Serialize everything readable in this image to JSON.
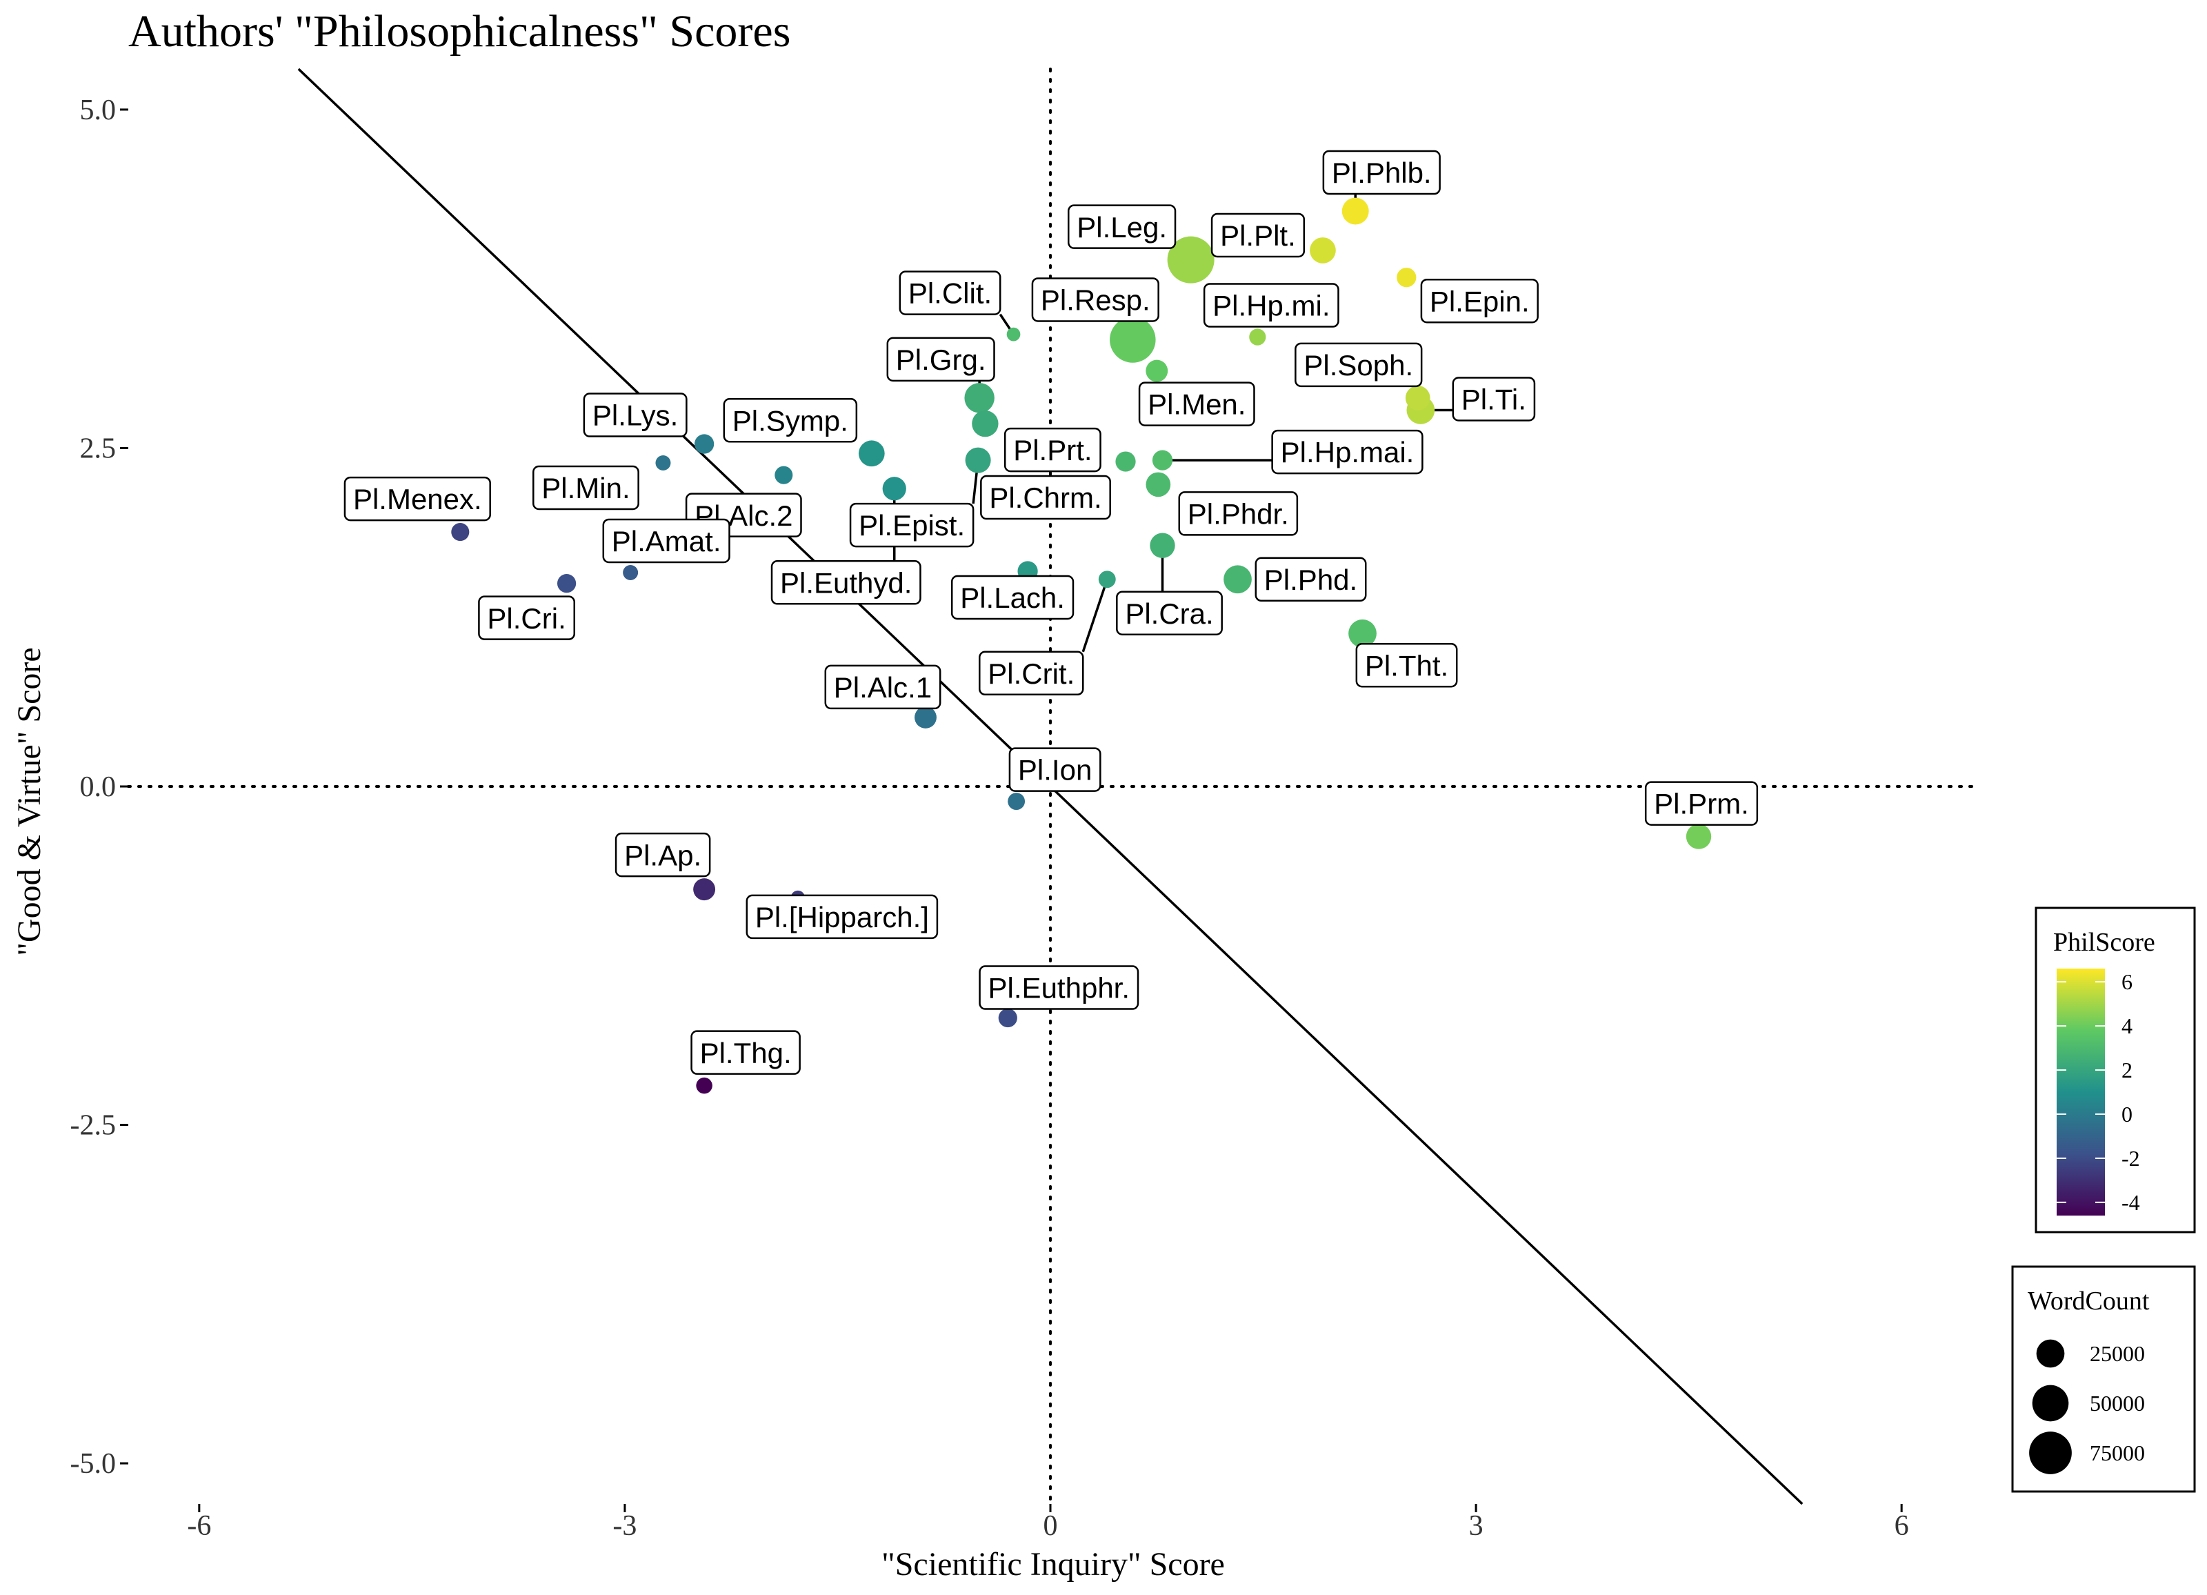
{
  "chart_data": {
    "type": "scatter",
    "title": "Authors' \"Philosophicalness\" Scores",
    "xlabel": "\"Scientific Inquiry\" Score",
    "ylabel": "\"Good & Virtue\" Score",
    "xlim": [
      -6.5,
      6.5
    ],
    "ylim": [
      -5.3,
      5.3
    ],
    "x_ticks": [
      -6,
      -3,
      0,
      3,
      6
    ],
    "x_tick_labels": [
      "-6",
      "-3",
      "0",
      "3",
      "6"
    ],
    "y_ticks": [
      5.0,
      2.5,
      0.0,
      -2.5,
      -5.0
    ],
    "y_tick_labels": [
      "5.0",
      "2.5",
      "0.0",
      "-2.5",
      "-5.0"
    ],
    "grid": false,
    "reference_lines": {
      "vertical_dotted_x": 0,
      "horizontal_dotted_y": 0,
      "diagonal": {
        "slope": -1,
        "intercept": 0
      }
    },
    "color_legend": {
      "title": "PhilScore",
      "placement": "right",
      "range": [
        -4.6,
        6.6
      ],
      "ticks": [
        6,
        4,
        2,
        0,
        -2,
        -4
      ],
      "tick_labels": [
        "6",
        "4",
        "2",
        "0",
        "-2",
        "-4"
      ],
      "colors": [
        "#440154",
        "#3b528b",
        "#21918c",
        "#5ec962",
        "#fde725"
      ]
    },
    "size_legend": {
      "title": "WordCount",
      "placement": "right",
      "values": [
        25000,
        50000,
        75000
      ],
      "labels": [
        "25000",
        "50000",
        "75000"
      ]
    },
    "points": [
      {
        "label": "Pl.Phlb.",
        "x": 2.15,
        "y": 4.25,
        "phil": 6.4,
        "words": 22000
      },
      {
        "label": "Pl.Plt.",
        "x": 1.92,
        "y": 3.96,
        "phil": 5.9,
        "words": 20000
      },
      {
        "label": "Pl.Leg.",
        "x": 0.99,
        "y": 3.89,
        "phil": 4.9,
        "words": 95000
      },
      {
        "label": "Pl.Epin.",
        "x": 2.51,
        "y": 3.76,
        "phil": 6.3,
        "words": 8000
      },
      {
        "label": "Pl.Hp.mi.",
        "x": 1.46,
        "y": 3.32,
        "phil": 4.8,
        "words": 4500
      },
      {
        "label": "Pl.Clit.",
        "x": -0.26,
        "y": 3.34,
        "phil": 3.1,
        "words": 1800
      },
      {
        "label": "Pl.Resp.",
        "x": 0.58,
        "y": 3.3,
        "phil": 3.9,
        "words": 90000
      },
      {
        "label": "Pl.Men.",
        "x": 0.75,
        "y": 3.07,
        "phil": 3.8,
        "words": 12000
      },
      {
        "label": "Pl.Soph.",
        "x": 2.59,
        "y": 2.87,
        "phil": 5.5,
        "words": 17000
      },
      {
        "label": "Pl.Ti.",
        "x": 2.61,
        "y": 2.78,
        "phil": 5.4,
        "words": 25000
      },
      {
        "label": "Pl.Grg.",
        "x": -0.5,
        "y": 2.87,
        "phil": 2.4,
        "words": 30000
      },
      {
        "label": "Pl.Prt.",
        "x": -0.46,
        "y": 2.68,
        "phil": 2.2,
        "words": 21000
      },
      {
        "label": "Pl.Lys.",
        "x": -2.44,
        "y": 2.53,
        "phil": 0.1,
        "words": 8000
      },
      {
        "label": "Pl.Symp.",
        "x": -1.26,
        "y": 2.46,
        "phil": 1.2,
        "words": 20000
      },
      {
        "label": "Pl.Epist.",
        "x": -0.51,
        "y": 2.41,
        "phil": 1.9,
        "words": 19000
      },
      {
        "label": "Pl.Min.",
        "x": -2.73,
        "y": 2.39,
        "phil": -0.3,
        "words": 3000
      },
      {
        "label": "Pl.Hp.mai.",
        "x": 0.79,
        "y": 2.41,
        "phil": 3.2,
        "words": 9000
      },
      {
        "label": "Pl.Chrm.",
        "x": 0.53,
        "y": 2.4,
        "phil": 2.9,
        "words": 9000
      },
      {
        "label": "Pl.Alc.2",
        "x": -1.88,
        "y": 2.3,
        "phil": 0.4,
        "words": 6000
      },
      {
        "label": "Pl.Euthyd.",
        "x": -1.1,
        "y": 2.2,
        "phil": 1.1,
        "words": 15000
      },
      {
        "label": "Pl.Phdr.",
        "x": 0.76,
        "y": 2.23,
        "phil": 3.0,
        "words": 17000
      },
      {
        "label": "Pl.Menex.",
        "x": -4.16,
        "y": 1.88,
        "phil": -2.3,
        "words": 6000
      },
      {
        "label": "Pl.Cra.",
        "x": 0.79,
        "y": 1.78,
        "phil": 2.6,
        "words": 18000
      },
      {
        "label": "Pl.Amat.",
        "x": -2.96,
        "y": 1.58,
        "phil": -1.4,
        "words": 3000
      },
      {
        "label": "Pl.Lach.",
        "x": -0.16,
        "y": 1.59,
        "phil": 1.4,
        "words": 9000
      },
      {
        "label": "Pl.Phd.",
        "x": 1.32,
        "y": 1.53,
        "phil": 2.8,
        "words": 25000
      },
      {
        "label": "Pl.Crit.",
        "x": 0.4,
        "y": 1.53,
        "phil": 1.9,
        "words": 5000
      },
      {
        "label": "Pl.Cri.",
        "x": -3.41,
        "y": 1.5,
        "phil": -1.9,
        "words": 7000
      },
      {
        "label": "Pl.Tht.",
        "x": 2.2,
        "y": 1.13,
        "phil": 3.3,
        "words": 25000
      },
      {
        "label": "Pl.Alc.1",
        "x": -0.88,
        "y": 0.51,
        "phil": -0.4,
        "words": 12000
      },
      {
        "label": "Pl.Ion",
        "x": -0.24,
        "y": -0.11,
        "phil": -0.4,
        "words": 5000
      },
      {
        "label": "Pl.Prm.",
        "x": 4.57,
        "y": -0.37,
        "phil": 4.2,
        "words": 18000
      },
      {
        "label": "Pl.Ap.",
        "x": -2.44,
        "y": -0.76,
        "phil": -3.2,
        "words": 12000
      },
      {
        "label": "Pl.[Hipparch.]",
        "x": -1.78,
        "y": -0.82,
        "phil": -2.6,
        "words": 2000
      },
      {
        "label": "Pl.Euthphr.",
        "x": -0.3,
        "y": -1.71,
        "phil": -2.0,
        "words": 7000
      },
      {
        "label": "Pl.Thg.",
        "x": -2.44,
        "y": -2.21,
        "phil": -4.6,
        "words": 4000
      }
    ]
  }
}
